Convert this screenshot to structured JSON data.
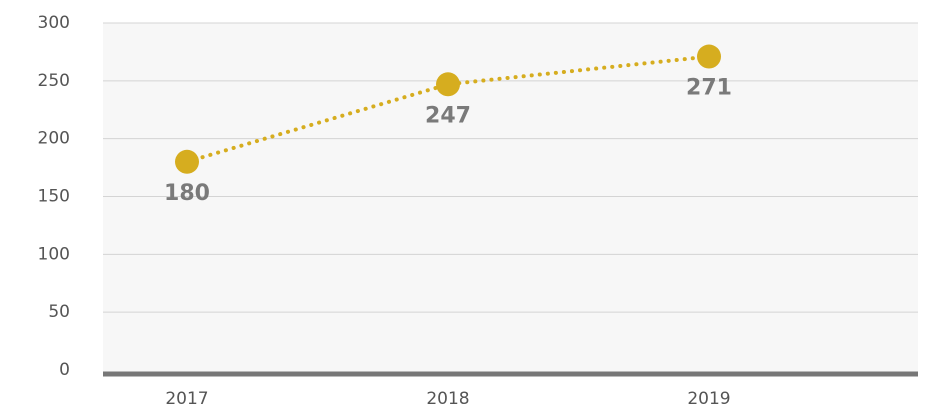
{
  "chart_data": {
    "type": "line",
    "categories": [
      "2017",
      "2018",
      "2019"
    ],
    "series": [
      {
        "name": null,
        "color": "#d6ad1f",
        "values": [
          180,
          247,
          271
        ]
      }
    ],
    "ylim": [
      0,
      300
    ],
    "yticks": [
      0,
      50,
      100,
      150,
      200,
      250,
      300
    ],
    "grid": true
  }
}
